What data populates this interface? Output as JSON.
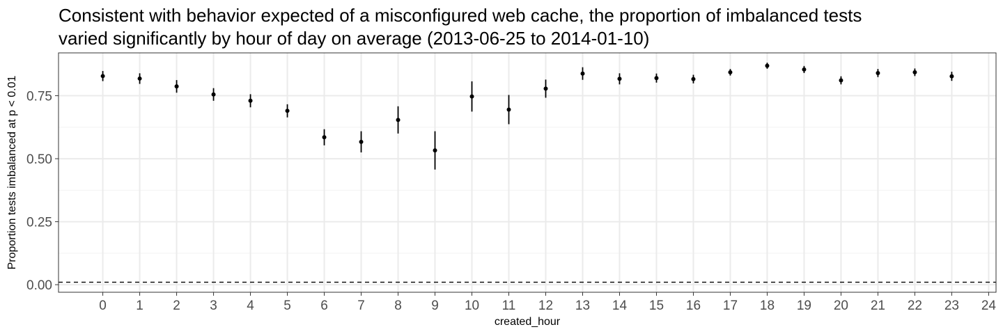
{
  "chart_data": {
    "type": "scatter",
    "title_line1": "Consistent with behavior expected of a misconfigured web cache, the proportion of imbalanced tests",
    "title_line2": "varied significantly by hour of day on average (2013-06-25 to 2014-01-10)",
    "xlabel": "created_hour",
    "ylabel": "Proportion tests imbalanced at p < 0.01",
    "xlim": [
      -1.2,
      24.2
    ],
    "ylim": [
      -0.03,
      0.92
    ],
    "x_ticks": [
      0,
      1,
      2,
      3,
      4,
      5,
      6,
      7,
      8,
      9,
      10,
      11,
      12,
      13,
      14,
      15,
      16,
      17,
      18,
      19,
      20,
      21,
      22,
      23,
      24
    ],
    "y_ticks": [
      0.0,
      0.25,
      0.5,
      0.75
    ],
    "y_tick_labels": [
      "0.00",
      "0.25",
      "0.50",
      "0.75"
    ],
    "grid": true,
    "reference_line": {
      "y": 0.01,
      "style": "dashed"
    },
    "points": [
      {
        "x": 0,
        "y": 0.828,
        "low": 0.808,
        "high": 0.848
      },
      {
        "x": 1,
        "y": 0.818,
        "low": 0.797,
        "high": 0.839
      },
      {
        "x": 2,
        "y": 0.787,
        "low": 0.762,
        "high": 0.812
      },
      {
        "x": 3,
        "y": 0.755,
        "low": 0.73,
        "high": 0.78
      },
      {
        "x": 4,
        "y": 0.73,
        "low": 0.704,
        "high": 0.756
      },
      {
        "x": 5,
        "y": 0.69,
        "low": 0.664,
        "high": 0.716
      },
      {
        "x": 6,
        "y": 0.585,
        "low": 0.553,
        "high": 0.617
      },
      {
        "x": 7,
        "y": 0.567,
        "low": 0.525,
        "high": 0.609
      },
      {
        "x": 8,
        "y": 0.654,
        "low": 0.6,
        "high": 0.708
      },
      {
        "x": 9,
        "y": 0.533,
        "low": 0.457,
        "high": 0.609
      },
      {
        "x": 10,
        "y": 0.747,
        "low": 0.687,
        "high": 0.807
      },
      {
        "x": 11,
        "y": 0.695,
        "low": 0.637,
        "high": 0.753
      },
      {
        "x": 12,
        "y": 0.778,
        "low": 0.742,
        "high": 0.814
      },
      {
        "x": 13,
        "y": 0.838,
        "low": 0.813,
        "high": 0.863
      },
      {
        "x": 14,
        "y": 0.817,
        "low": 0.795,
        "high": 0.839
      },
      {
        "x": 15,
        "y": 0.82,
        "low": 0.802,
        "high": 0.838
      },
      {
        "x": 16,
        "y": 0.816,
        "low": 0.799,
        "high": 0.833
      },
      {
        "x": 17,
        "y": 0.843,
        "low": 0.83,
        "high": 0.856
      },
      {
        "x": 18,
        "y": 0.869,
        "low": 0.857,
        "high": 0.881
      },
      {
        "x": 19,
        "y": 0.854,
        "low": 0.84,
        "high": 0.868
      },
      {
        "x": 20,
        "y": 0.811,
        "low": 0.795,
        "high": 0.827
      },
      {
        "x": 21,
        "y": 0.84,
        "low": 0.824,
        "high": 0.856
      },
      {
        "x": 22,
        "y": 0.843,
        "low": 0.828,
        "high": 0.858
      },
      {
        "x": 23,
        "y": 0.827,
        "low": 0.809,
        "high": 0.845
      }
    ]
  }
}
